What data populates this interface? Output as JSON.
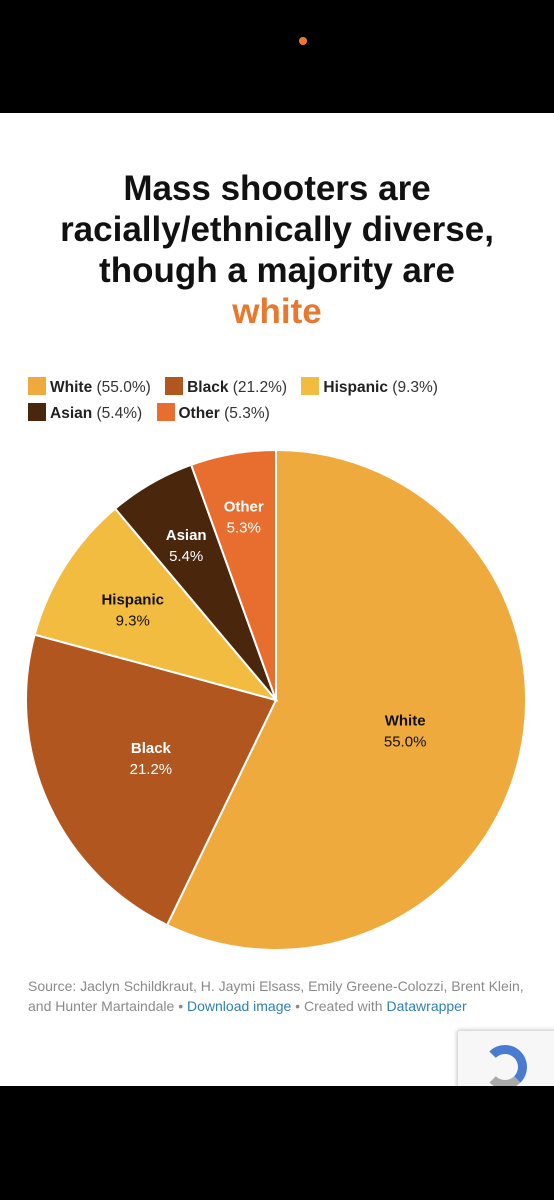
{
  "chart_data": {
    "type": "pie",
    "title": "Mass shooters are racially/ethnically diverse, though a majority are",
    "title_highlight": "white",
    "slices": [
      {
        "label": "White",
        "value": 55.0,
        "display": "55.0%",
        "color": "#eeaa3c",
        "text_color": "#111111"
      },
      {
        "label": "Black",
        "value": 21.2,
        "display": "21.2%",
        "color": "#b2561f",
        "text_color": "#ffffff"
      },
      {
        "label": "Hispanic",
        "value": 9.3,
        "display": "9.3%",
        "color": "#f2bc41",
        "text_color": "#111111"
      },
      {
        "label": "Asian",
        "value": 5.4,
        "display": "5.4%",
        "color": "#4a260c",
        "text_color": "#ffffff"
      },
      {
        "label": "Other",
        "value": 5.3,
        "display": "5.3%",
        "color": "#e76e2e",
        "text_color": "#ffffff"
      }
    ],
    "legend": [
      {
        "label": "White",
        "pct": "(55.0%)"
      },
      {
        "label": "Black",
        "pct": "(21.2%)"
      },
      {
        "label": "Hispanic",
        "pct": "(9.3%)"
      },
      {
        "label": "Asian",
        "pct": "(5.4%)"
      },
      {
        "label": "Other",
        "pct": "(5.3%)"
      }
    ]
  },
  "source": {
    "text": "Source: Jaclyn Schildkraut, H. Jaymi Elsass, Emily Greene-Colozzi, Brent Klein, and Hunter Martaindale • ",
    "download_link": "Download image",
    "created_with": " • Created with ",
    "datawrapper_link": "Datawrapper"
  }
}
